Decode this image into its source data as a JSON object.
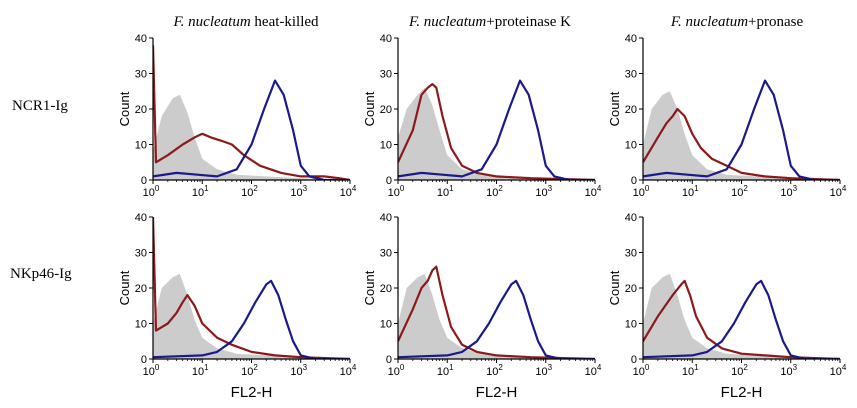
{
  "columns": [
    {
      "species": "F. nucleatum",
      "treatment": " heat-killed"
    },
    {
      "species": "F. nucleatum",
      "treatment": "+proteinase K"
    },
    {
      "species": "F. nucleatum",
      "treatment": "+pronase"
    }
  ],
  "rows": [
    "NCR1-Ig",
    "NKp46-Ig"
  ],
  "colors": {
    "fill_control": "#cccccc",
    "red": "#8b1a1a",
    "blue": "#1a1a8c"
  },
  "chart_data": {
    "type": "area",
    "xlabel": "FL2-H",
    "ylabel": "Count",
    "xscale": "log",
    "xlim": [
      1,
      10000
    ],
    "ylim": [
      0,
      40
    ],
    "yticks": [
      0,
      10,
      20,
      30,
      40
    ],
    "xticks": [
      1,
      10,
      100,
      1000,
      10000
    ],
    "xtick_labels": [
      "10^0",
      "10^1",
      "10^2",
      "10^3",
      "10^4"
    ],
    "panels": [
      {
        "row": "NCR1-Ig",
        "column": "F. nucleatum heat-killed",
        "gray": [
          [
            1,
            8
          ],
          [
            1.5,
            18
          ],
          [
            2.5,
            23
          ],
          [
            3.5,
            24
          ],
          [
            5,
            19
          ],
          [
            7,
            12
          ],
          [
            10,
            6
          ],
          [
            20,
            3
          ],
          [
            50,
            1.5
          ],
          [
            200,
            1
          ],
          [
            1000,
            0.5
          ],
          [
            10000,
            0
          ]
        ],
        "red": [
          [
            1,
            38
          ],
          [
            1.15,
            5
          ],
          [
            2,
            7
          ],
          [
            4,
            10
          ],
          [
            7,
            12
          ],
          [
            10,
            13
          ],
          [
            15,
            12
          ],
          [
            25,
            11
          ],
          [
            40,
            10
          ],
          [
            70,
            7
          ],
          [
            150,
            4
          ],
          [
            400,
            2
          ],
          [
            1000,
            1
          ],
          [
            3000,
            1
          ],
          [
            6000,
            0.5
          ],
          [
            10000,
            0
          ]
        ],
        "blue": [
          [
            1,
            1
          ],
          [
            3,
            2
          ],
          [
            8,
            1.5
          ],
          [
            20,
            1
          ],
          [
            50,
            3
          ],
          [
            100,
            10
          ],
          [
            180,
            20
          ],
          [
            300,
            28
          ],
          [
            450,
            24
          ],
          [
            700,
            14
          ],
          [
            1000,
            4
          ],
          [
            1500,
            1
          ],
          [
            3000,
            0
          ],
          [
            10000,
            0
          ]
        ]
      },
      {
        "row": "NCR1-Ig",
        "column": "F. nucleatum+proteinase K",
        "gray": [
          [
            1,
            12
          ],
          [
            1.5,
            20
          ],
          [
            2.5,
            24
          ],
          [
            3.5,
            26
          ],
          [
            5,
            21
          ],
          [
            7,
            14
          ],
          [
            10,
            7
          ],
          [
            20,
            3
          ],
          [
            50,
            1.5
          ],
          [
            200,
            1
          ],
          [
            1000,
            0.5
          ],
          [
            10000,
            0
          ]
        ],
        "red": [
          [
            1,
            5
          ],
          [
            2,
            14
          ],
          [
            3,
            24
          ],
          [
            4,
            26
          ],
          [
            5,
            27
          ],
          [
            6,
            26
          ],
          [
            8,
            18
          ],
          [
            12,
            9
          ],
          [
            20,
            4
          ],
          [
            40,
            2
          ],
          [
            100,
            1
          ],
          [
            500,
            0.5
          ],
          [
            10000,
            0
          ]
        ],
        "blue": [
          [
            1,
            1
          ],
          [
            3,
            2
          ],
          [
            8,
            1.5
          ],
          [
            20,
            1
          ],
          [
            50,
            3
          ],
          [
            100,
            10
          ],
          [
            180,
            20
          ],
          [
            300,
            28
          ],
          [
            450,
            24
          ],
          [
            700,
            14
          ],
          [
            1000,
            4
          ],
          [
            1500,
            1
          ],
          [
            3000,
            0
          ],
          [
            10000,
            0
          ]
        ]
      },
      {
        "row": "NCR1-Ig",
        "column": "F. nucleatum+pronase",
        "gray": [
          [
            1,
            10
          ],
          [
            1.5,
            20
          ],
          [
            2.5,
            24
          ],
          [
            3.5,
            25
          ],
          [
            5,
            20
          ],
          [
            7,
            13
          ],
          [
            10,
            7
          ],
          [
            20,
            3
          ],
          [
            50,
            1.5
          ],
          [
            200,
            1
          ],
          [
            1000,
            0.5
          ],
          [
            10000,
            0
          ]
        ],
        "red": [
          [
            1,
            5
          ],
          [
            2,
            12
          ],
          [
            3,
            16
          ],
          [
            4,
            18
          ],
          [
            5,
            20
          ],
          [
            7,
            18
          ],
          [
            10,
            13
          ],
          [
            15,
            9
          ],
          [
            25,
            6
          ],
          [
            50,
            4
          ],
          [
            100,
            2
          ],
          [
            300,
            1
          ],
          [
            1000,
            0.5
          ],
          [
            10000,
            0
          ]
        ],
        "blue": [
          [
            1,
            1
          ],
          [
            3,
            2
          ],
          [
            8,
            1.5
          ],
          [
            20,
            1
          ],
          [
            50,
            3
          ],
          [
            100,
            10
          ],
          [
            180,
            20
          ],
          [
            300,
            28
          ],
          [
            450,
            24
          ],
          [
            700,
            14
          ],
          [
            1000,
            4
          ],
          [
            1500,
            1
          ],
          [
            3000,
            0
          ],
          [
            10000,
            0
          ]
        ]
      },
      {
        "row": "NKp46-Ig",
        "column": "F. nucleatum heat-killed",
        "gray": [
          [
            1,
            10
          ],
          [
            1.5,
            20
          ],
          [
            2.5,
            23
          ],
          [
            3.5,
            24
          ],
          [
            5,
            18
          ],
          [
            7,
            11
          ],
          [
            10,
            6
          ],
          [
            20,
            3
          ],
          [
            50,
            1.5
          ],
          [
            200,
            1
          ],
          [
            1000,
            0.5
          ],
          [
            10000,
            0
          ]
        ],
        "red": [
          [
            1,
            40
          ],
          [
            1.15,
            8
          ],
          [
            2,
            10
          ],
          [
            3,
            13
          ],
          [
            4,
            16
          ],
          [
            5,
            18
          ],
          [
            7,
            15
          ],
          [
            10,
            10
          ],
          [
            20,
            6
          ],
          [
            40,
            4
          ],
          [
            100,
            2
          ],
          [
            300,
            1
          ],
          [
            1000,
            0.5
          ],
          [
            10000,
            0
          ]
        ],
        "blue": [
          [
            1,
            0.5
          ],
          [
            10,
            1
          ],
          [
            20,
            2
          ],
          [
            40,
            5
          ],
          [
            70,
            10
          ],
          [
            120,
            16
          ],
          [
            200,
            21
          ],
          [
            250,
            22
          ],
          [
            350,
            18
          ],
          [
            500,
            11
          ],
          [
            700,
            5
          ],
          [
            1000,
            1
          ],
          [
            2000,
            0
          ],
          [
            10000,
            0
          ]
        ]
      },
      {
        "row": "NKp46-Ig",
        "column": "F. nucleatum+proteinase K",
        "gray": [
          [
            1,
            10
          ],
          [
            1.5,
            20
          ],
          [
            2.5,
            23
          ],
          [
            3.5,
            24
          ],
          [
            5,
            18
          ],
          [
            7,
            11
          ],
          [
            10,
            6
          ],
          [
            20,
            3
          ],
          [
            50,
            1.5
          ],
          [
            200,
            1
          ],
          [
            1000,
            0.5
          ],
          [
            10000,
            0
          ]
        ],
        "red": [
          [
            1,
            5
          ],
          [
            2,
            14
          ],
          [
            3,
            20
          ],
          [
            4,
            22
          ],
          [
            5,
            25
          ],
          [
            6,
            26
          ],
          [
            8,
            18
          ],
          [
            12,
            9
          ],
          [
            20,
            4
          ],
          [
            40,
            2
          ],
          [
            100,
            1
          ],
          [
            500,
            0.5
          ],
          [
            10000,
            0
          ]
        ],
        "blue": [
          [
            1,
            0.5
          ],
          [
            10,
            1
          ],
          [
            20,
            2
          ],
          [
            40,
            5
          ],
          [
            70,
            10
          ],
          [
            120,
            16
          ],
          [
            200,
            21
          ],
          [
            250,
            22
          ],
          [
            350,
            18
          ],
          [
            500,
            11
          ],
          [
            700,
            5
          ],
          [
            1000,
            1
          ],
          [
            2000,
            0
          ],
          [
            10000,
            0
          ]
        ]
      },
      {
        "row": "NKp46-Ig",
        "column": "F. nucleatum+pronase",
        "gray": [
          [
            1,
            10
          ],
          [
            1.5,
            20
          ],
          [
            2.5,
            23
          ],
          [
            3.5,
            24
          ],
          [
            5,
            18
          ],
          [
            7,
            11
          ],
          [
            10,
            6
          ],
          [
            20,
            3
          ],
          [
            50,
            1.5
          ],
          [
            200,
            1
          ],
          [
            1000,
            0.5
          ],
          [
            10000,
            0
          ]
        ],
        "red": [
          [
            1,
            5
          ],
          [
            2,
            12
          ],
          [
            4,
            18
          ],
          [
            6,
            21
          ],
          [
            7,
            22
          ],
          [
            9,
            18
          ],
          [
            12,
            12
          ],
          [
            20,
            6
          ],
          [
            40,
            3
          ],
          [
            100,
            1.5
          ],
          [
            300,
            1
          ],
          [
            1000,
            0.5
          ],
          [
            10000,
            0
          ]
        ],
        "blue": [
          [
            1,
            0.5
          ],
          [
            10,
            1
          ],
          [
            20,
            2
          ],
          [
            40,
            5
          ],
          [
            70,
            10
          ],
          [
            120,
            16
          ],
          [
            200,
            21
          ],
          [
            250,
            22
          ],
          [
            350,
            18
          ],
          [
            500,
            11
          ],
          [
            700,
            5
          ],
          [
            1000,
            1
          ],
          [
            2000,
            0
          ],
          [
            10000,
            0
          ]
        ]
      }
    ]
  }
}
